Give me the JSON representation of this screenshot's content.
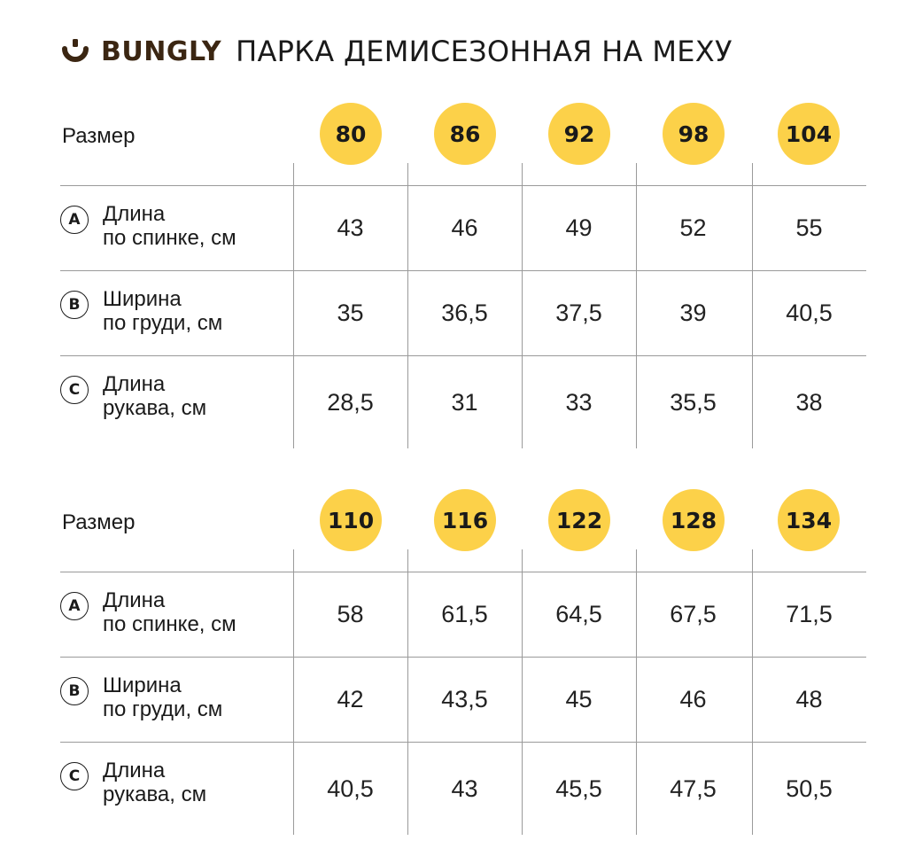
{
  "header": {
    "brand": "BUNGLY",
    "product": "ПАРКА ДЕМИСЕЗОННАЯ НА МЕХУ",
    "logo_icon": "bungly-logo-icon",
    "brand_color": "#3b2612"
  },
  "accent_color": "#fcd149",
  "tables": [
    {
      "size_label": "Размер",
      "sizes": [
        "80",
        "86",
        "92",
        "98",
        "104"
      ],
      "rows": [
        {
          "badge": "A",
          "label": [
            "Длина",
            "по спинке, см"
          ],
          "values": [
            "43",
            "46",
            "49",
            "52",
            "55"
          ]
        },
        {
          "badge": "B",
          "label": [
            "Ширина",
            "по груди, см"
          ],
          "values": [
            "35",
            "36,5",
            "37,5",
            "39",
            "40,5"
          ]
        },
        {
          "badge": "C",
          "label": [
            "Длина",
            "рукава, см"
          ],
          "values": [
            "28,5",
            "31",
            "33",
            "35,5",
            "38"
          ]
        }
      ]
    },
    {
      "size_label": "Размер",
      "sizes": [
        "110",
        "116",
        "122",
        "128",
        "134"
      ],
      "rows": [
        {
          "badge": "A",
          "label": [
            "Длина",
            "по спинке, см"
          ],
          "values": [
            "58",
            "61,5",
            "64,5",
            "67,5",
            "71,5"
          ]
        },
        {
          "badge": "B",
          "label": [
            "Ширина",
            "по груди, см"
          ],
          "values": [
            "42",
            "43,5",
            "45",
            "46",
            "48"
          ]
        },
        {
          "badge": "C",
          "label": [
            "Длина",
            "рукава, см"
          ],
          "values": [
            "40,5",
            "43",
            "45,5",
            "47,5",
            "50,5"
          ]
        }
      ]
    }
  ]
}
